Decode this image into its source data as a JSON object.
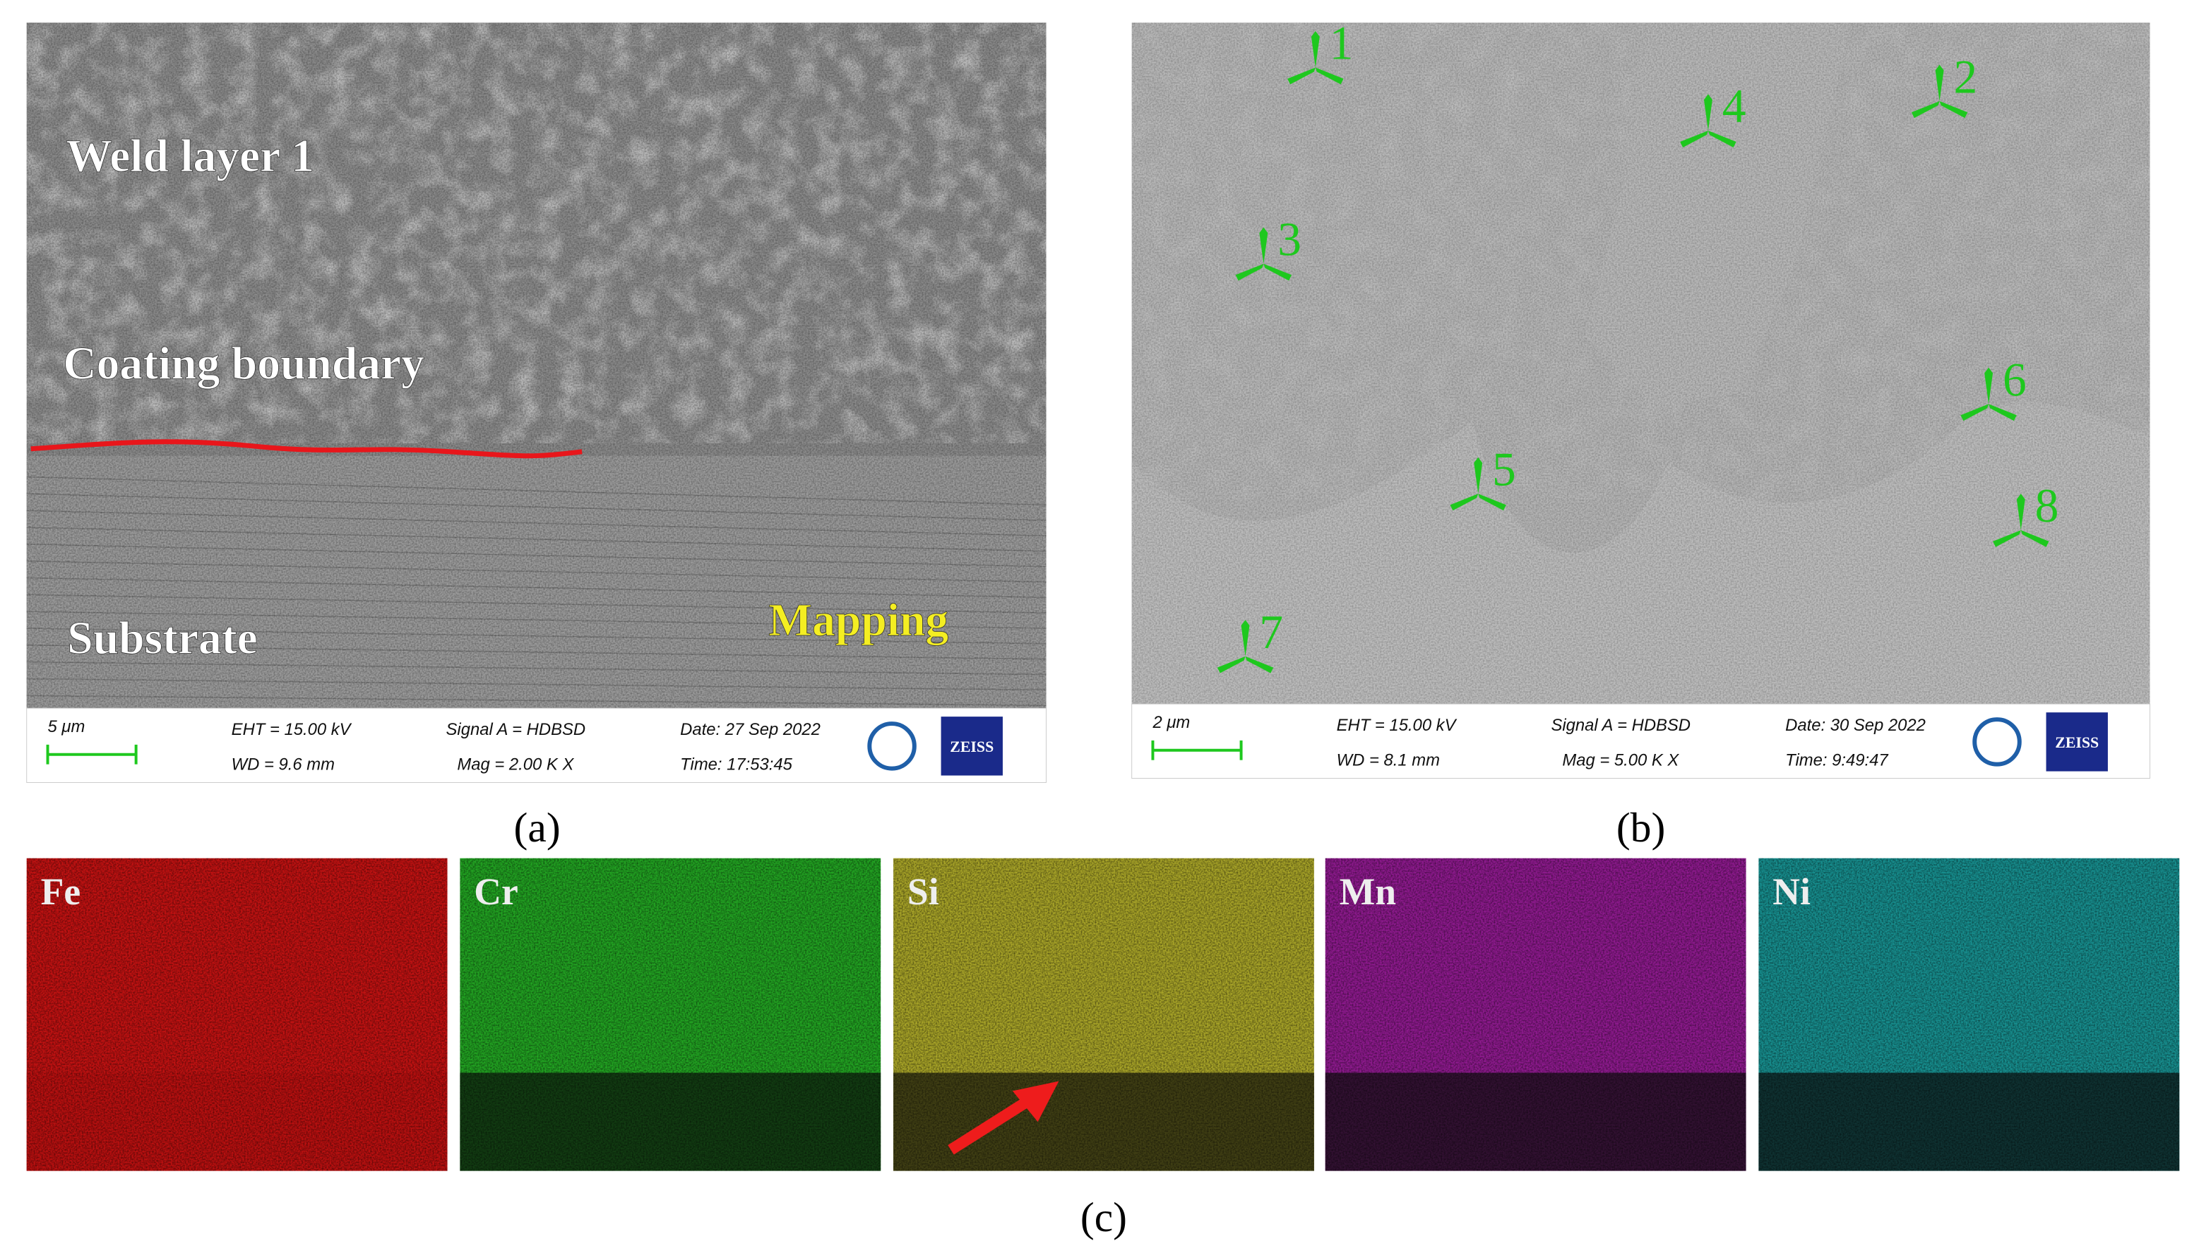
{
  "panels": [
    {
      "label": "(a)",
      "annotations": [
        "Weld layer 1",
        "Coating boundary",
        "Substrate",
        "Mapping"
      ],
      "info_bar": {
        "scale": "5 μm",
        "eht": "EHT = 15.00 kV",
        "wd": "WD =  9.6 mm",
        "signal": "Signal A = HDBSD",
        "mag": "Mag =    2.00 K X",
        "date": "Date: 27 Sep 2022",
        "time": "Time: 17:53:45",
        "logo": "ZEISS"
      }
    },
    {
      "label": "(b)",
      "points": [
        "1",
        "2",
        "3",
        "4",
        "5",
        "6",
        "7",
        "8"
      ],
      "info_bar": {
        "scale": "2 μm",
        "eht": "EHT = 15.00 kV",
        "wd": "WD =  8.1 mm",
        "signal": "Signal A = HDBSD",
        "mag": "Mag =    5.00 K X",
        "date": "Date: 30 Sep 2022",
        "time": "Time: 9:49:47",
        "logo": "ZEISS"
      }
    },
    {
      "label": "(c)",
      "maps": [
        "Fe",
        "Cr",
        "Si",
        "Mn",
        "Ni"
      ]
    }
  ]
}
